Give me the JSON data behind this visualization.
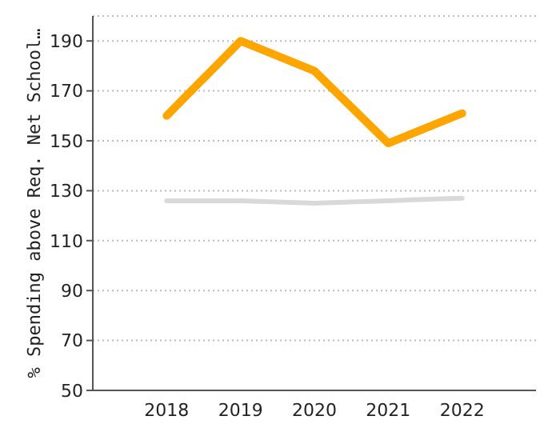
{
  "chart_data": {
    "type": "line",
    "ylabel": "% Spending above Req. Net School…",
    "categories": [
      "2018",
      "2019",
      "2020",
      "2021",
      "2022"
    ],
    "series": [
      {
        "color": "#ffa500",
        "values": [
          160,
          190,
          178,
          149,
          161
        ]
      },
      {
        "color": "#d9d9d9",
        "values": [
          126,
          126,
          125,
          126,
          127
        ]
      }
    ],
    "ylim": [
      50,
      200
    ],
    "yticks": [
      50,
      70,
      90,
      110,
      130,
      150,
      170,
      190
    ],
    "grid": "y",
    "legend": false,
    "marker": "none",
    "line_style": "solid"
  }
}
